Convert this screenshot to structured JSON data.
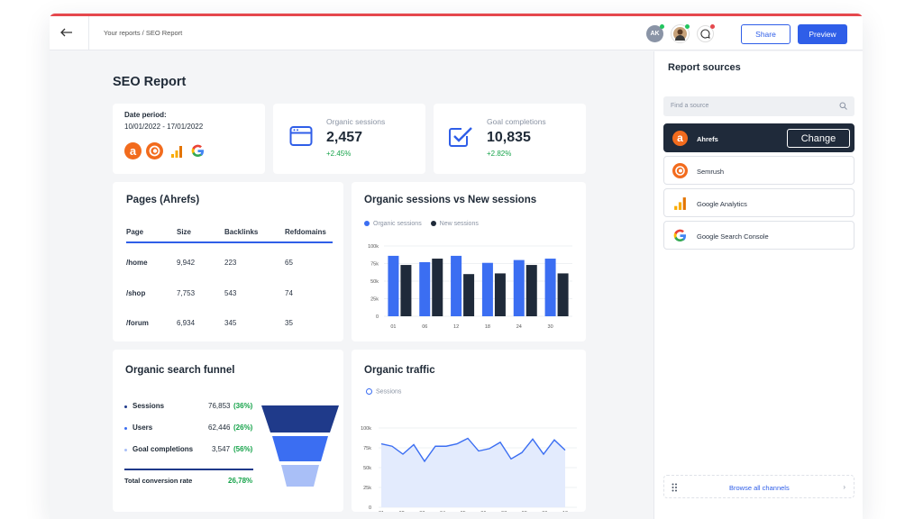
{
  "topbar": {
    "breadcrumb": "Your reports / SEO Report",
    "avatar_initials": "AK",
    "share_label": "Share",
    "preview_label": "Preview",
    "accent": "#2f5ee8"
  },
  "page_title": "SEO Report",
  "date_card": {
    "label": "Date period:",
    "value": "10/01/2022 - 17/01/2022"
  },
  "kpis": [
    {
      "label": "Organic sessions",
      "value": "2,457",
      "delta": "+2.45%"
    },
    {
      "label": "Goal completions",
      "value": "10,835",
      "delta": "+2.82%"
    }
  ],
  "pages_table": {
    "title": "Pages (Ahrefs)",
    "headers": [
      "Page",
      "Size",
      "Backlinks",
      "Refdomains"
    ],
    "rows": [
      [
        "/home",
        "9,942",
        "223",
        "65"
      ],
      [
        "/shop",
        "7,753",
        "543",
        "74"
      ],
      [
        "/forum",
        "6,934",
        "345",
        "35"
      ]
    ]
  },
  "funnel": {
    "title": "Organic search funnel",
    "rows": [
      {
        "label": "Sessions",
        "value": "76,853",
        "pct": "(36%)"
      },
      {
        "label": "Users",
        "value": "62,446",
        "pct": "(26%)"
      },
      {
        "label": "Goal completions",
        "value": "3,547",
        "pct": "(56%)"
      }
    ],
    "total_label": "Total conversion rate",
    "total_value": "26,78%"
  },
  "chart_data": [
    {
      "type": "bar",
      "title": "Organic sessions vs New sessions",
      "series": [
        {
          "name": "Organic sessions",
          "color": "#3b6ef2",
          "values": [
            86,
            77,
            86,
            76,
            80,
            82
          ]
        },
        {
          "name": "New sessions",
          "color": "#1f2a3a",
          "values": [
            73,
            82,
            60,
            61,
            73,
            61
          ]
        }
      ],
      "x_tick_labels": [
        "01",
        "06",
        "12",
        "18",
        "24",
        "30"
      ],
      "y_tick_labels": [
        "0",
        "25k",
        "50k",
        "75k",
        "100k"
      ],
      "ylim": [
        0,
        100
      ]
    },
    {
      "type": "area",
      "title": "Organic traffic",
      "series": [
        {
          "name": "Sessions",
          "color": "#3b6ef2",
          "values": [
            80,
            77,
            67,
            79,
            58,
            77,
            77,
            80,
            87,
            71,
            74,
            82,
            61,
            69,
            86,
            67,
            85,
            72
          ]
        }
      ],
      "x_tick_labels": [
        "01",
        "02",
        "03",
        "04",
        "05",
        "06",
        "07",
        "08",
        "09",
        "10"
      ],
      "y_tick_labels": [
        "0",
        "25k",
        "50k",
        "75k",
        "100k"
      ],
      "ylim": [
        0,
        100
      ]
    }
  ],
  "sidebar": {
    "title": "Report sources",
    "search_placeholder": "Find a source",
    "sources": [
      {
        "label": "Ahrefs",
        "icon": "ahrefs-icon",
        "active": true
      },
      {
        "label": "Semrush",
        "icon": "semrush-icon"
      },
      {
        "label": "Google Analytics",
        "icon": "google-analytics-icon"
      },
      {
        "label": "Google Search Console",
        "icon": "google-search-console-icon"
      }
    ],
    "change_label": "Change",
    "browse_label": "Browse all channels"
  }
}
